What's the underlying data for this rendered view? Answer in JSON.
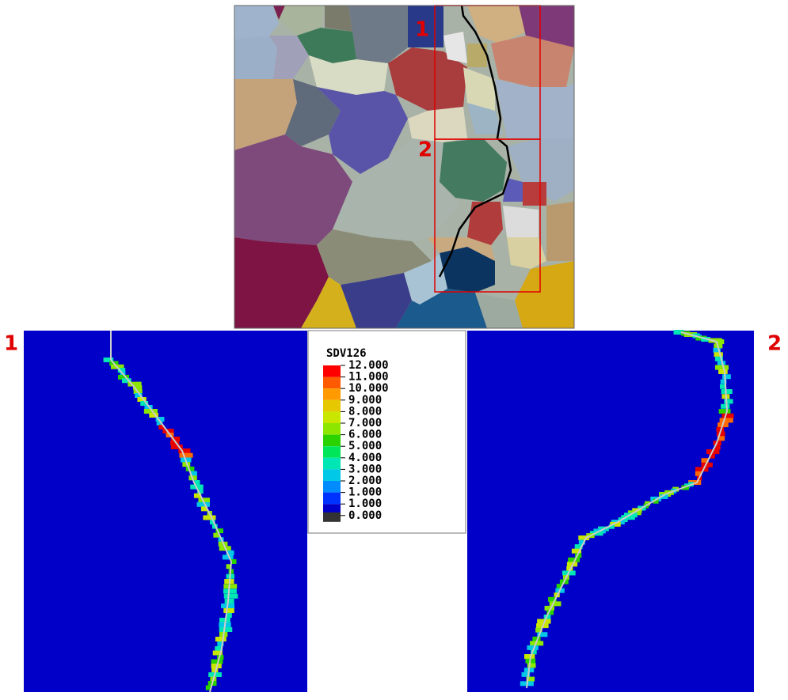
{
  "labels": {
    "top_box_1": "1",
    "top_box_2": "2",
    "left_panel": "1",
    "right_panel": "2"
  },
  "legend": {
    "title": "SDV126",
    "entries": [
      "12.000",
      "11.000",
      "10.000",
      "9.000",
      "8.000",
      "7.000",
      "6.000",
      "5.000",
      "4.000",
      "3.000",
      "2.000",
      "1.000",
      "1.000",
      "0.000"
    ]
  }
}
